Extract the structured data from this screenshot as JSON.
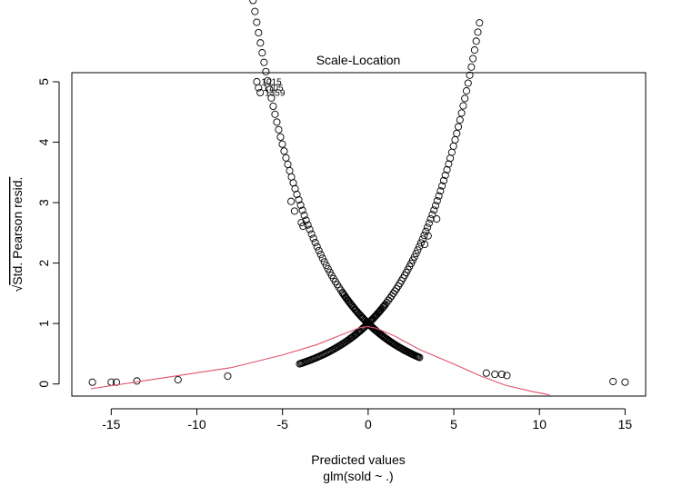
{
  "chart_data": {
    "type": "scatter",
    "title": "Scale-Location",
    "xlabel": "Predicted values",
    "xlabel_sub": "glm(sold ~ .)",
    "ylabel": "√Std. Pearson resid.",
    "ylabel_radicand": "Std. Pearson resid.",
    "ylabel_root": "√",
    "xlim": [
      -17.3,
      16.2
    ],
    "ylim": [
      -0.2,
      5.15
    ],
    "x_ticks": [
      -15,
      -10,
      -5,
      0,
      5,
      10,
      15
    ],
    "x_tick_labels": [
      "-15",
      "-10",
      "-5",
      "0",
      "5",
      "10",
      "15"
    ],
    "y_ticks": [
      0,
      1,
      2,
      3,
      4,
      5
    ],
    "y_tick_labels": [
      "0",
      "1",
      "2",
      "3",
      "4",
      "5"
    ],
    "grid": false,
    "colors": {
      "points": "#000000",
      "smoother": "#DF536B",
      "axes": "#000000"
    },
    "point_outliers": [
      {
        "x": -16.1,
        "y": 0.03
      },
      {
        "x": -15.0,
        "y": 0.03
      },
      {
        "x": -14.7,
        "y": 0.03
      },
      {
        "x": -13.5,
        "y": 0.05
      },
      {
        "x": -11.1,
        "y": 0.07
      },
      {
        "x": -8.2,
        "y": 0.13
      },
      {
        "x": 6.9,
        "y": 0.18
      },
      {
        "x": 7.4,
        "y": 0.16
      },
      {
        "x": 7.8,
        "y": 0.16
      },
      {
        "x": 8.1,
        "y": 0.14
      },
      {
        "x": 14.3,
        "y": 0.04
      },
      {
        "x": 15.0,
        "y": 0.03
      },
      {
        "x": -4.5,
        "y": 3.02
      },
      {
        "x": -4.3,
        "y": 2.86
      },
      {
        "x": -3.9,
        "y": 2.67
      },
      {
        "x": -3.8,
        "y": 2.61
      },
      {
        "x": 4.0,
        "y": 2.73
      },
      {
        "x": 3.5,
        "y": 2.45
      },
      {
        "x": 3.3,
        "y": 2.31
      },
      {
        "x": -6.5,
        "y": 5.0
      },
      {
        "x": -6.4,
        "y": 4.9
      },
      {
        "x": -6.3,
        "y": 4.82
      }
    ],
    "labeled_points": [
      {
        "label": "1015",
        "x": -6.5,
        "y": 5.0
      },
      {
        "label": "1705",
        "x": -6.4,
        "y": 4.9
      },
      {
        "label": "1359",
        "x": -6.3,
        "y": 4.82
      }
    ],
    "curve_branches": [
      {
        "name": "",
        "x_from": -4.0,
        "x_to": 1.0,
        "a": 1.0,
        "b": 0.275,
        "count": 75
      },
      {
        "name": "",
        "x_from": -1.5,
        "x_to": 3.0,
        "a": 1.0,
        "b": -0.275,
        "count": 75
      },
      {
        "name": "",
        "x_from": -8.0,
        "x_to": 1.5,
        "a": 1.0,
        "b": -0.275,
        "count": 90
      },
      {
        "name": "",
        "x_from": -1.0,
        "x_to": 6.5,
        "a": 1.0,
        "b": 0.275,
        "count": 80
      }
    ],
    "smoother": [
      {
        "x": -16.2,
        "y": -0.08
      },
      {
        "x": -12.0,
        "y": 0.1
      },
      {
        "x": -8.0,
        "y": 0.27
      },
      {
        "x": -5.0,
        "y": 0.48
      },
      {
        "x": -3.0,
        "y": 0.65
      },
      {
        "x": -1.5,
        "y": 0.82
      },
      {
        "x": -0.5,
        "y": 0.93
      },
      {
        "x": 0.0,
        "y": 0.95
      },
      {
        "x": 0.5,
        "y": 0.92
      },
      {
        "x": 1.5,
        "y": 0.8
      },
      {
        "x": 3.0,
        "y": 0.57
      },
      {
        "x": 5.0,
        "y": 0.33
      },
      {
        "x": 6.5,
        "y": 0.14
      },
      {
        "x": 8.0,
        "y": -0.02
      },
      {
        "x": 9.5,
        "y": -0.12
      },
      {
        "x": 10.6,
        "y": -0.18
      }
    ]
  }
}
